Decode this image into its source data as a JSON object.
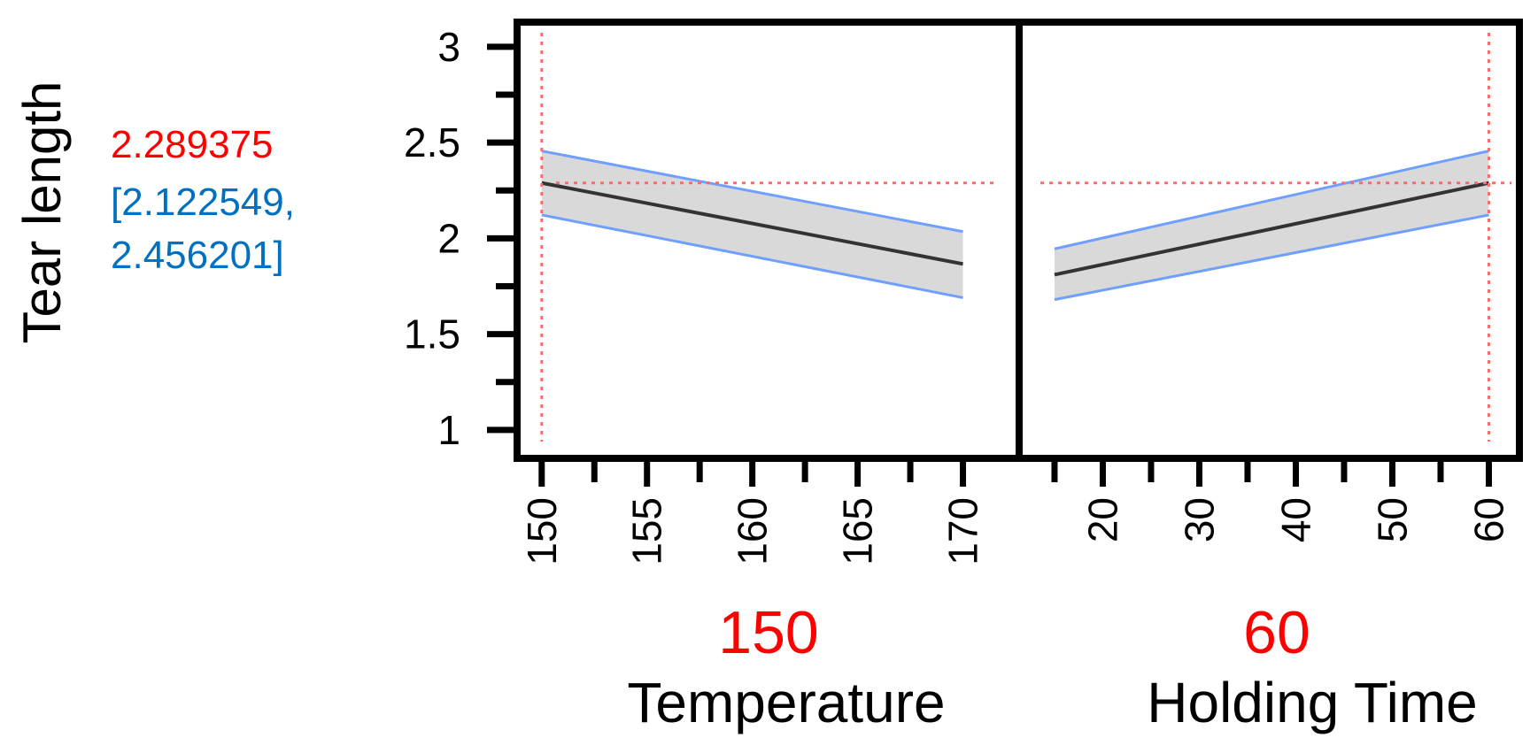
{
  "y_label": "Tear length",
  "prediction": {
    "value": "2.289375",
    "ci_line1": "[2.122549,",
    "ci_line2": "2.456201]"
  },
  "colors": {
    "prediction": "#ff0000",
    "ci_text": "#0070c0",
    "band_fill": "#d9d9d9",
    "band_edge": "#6fa0ff",
    "mean_line": "#333333",
    "ref_line": "#ff6b6b"
  },
  "chart_data": [
    {
      "type": "line",
      "name": "temperature-panel",
      "xlabel": "Temperature",
      "current_value": "150",
      "xlim": [
        149,
        172.5
      ],
      "ylim": [
        0.87,
        3.11
      ],
      "x_ticks": [
        "150",
        "155",
        "160",
        "165",
        "170"
      ],
      "x_tick_values": [
        150,
        155,
        160,
        165,
        170
      ],
      "x_minor": [
        152.5,
        157.5,
        162.5,
        167.5
      ],
      "y_ticks": [
        "1",
        "1.5",
        "2",
        "2.5",
        "3"
      ],
      "y_tick_values": [
        1,
        1.5,
        2,
        2.5,
        3
      ],
      "y_minor": [
        1.25,
        1.75,
        2.25,
        2.75
      ],
      "x": [
        150,
        170
      ],
      "mean": [
        2.289,
        1.866
      ],
      "lower": [
        2.122,
        1.69
      ],
      "upper": [
        2.456,
        2.035
      ],
      "ref_x": 150,
      "ref_y": 2.289
    },
    {
      "type": "line",
      "name": "holding-time-panel",
      "xlabel": "Holding Time",
      "current_value": "60",
      "xlim": [
        11.7,
        62.8
      ],
      "ylim": [
        0.87,
        3.11
      ],
      "x_ticks": [
        "20",
        "30",
        "40",
        "50",
        "60"
      ],
      "x_tick_values": [
        20,
        30,
        40,
        50,
        60
      ],
      "x_minor": [
        15,
        25,
        35,
        45,
        55
      ],
      "x": [
        15,
        60
      ],
      "mean": [
        1.81,
        2.289
      ],
      "lower": [
        1.68,
        2.122
      ],
      "upper": [
        1.945,
        2.456
      ],
      "ref_x": 60,
      "ref_y": 2.289
    }
  ]
}
